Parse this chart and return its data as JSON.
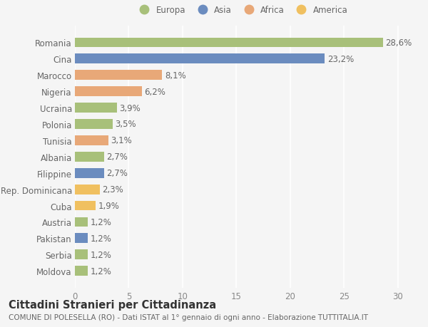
{
  "categories": [
    "Moldova",
    "Serbia",
    "Pakistan",
    "Austria",
    "Cuba",
    "Rep. Dominicana",
    "Filippine",
    "Albania",
    "Tunisia",
    "Polonia",
    "Ucraina",
    "Nigeria",
    "Marocco",
    "Cina",
    "Romania"
  ],
  "values": [
    1.2,
    1.2,
    1.2,
    1.2,
    1.9,
    2.3,
    2.7,
    2.7,
    3.1,
    3.5,
    3.9,
    6.2,
    8.1,
    23.2,
    28.6
  ],
  "colors": [
    "#a8c07a",
    "#a8c07a",
    "#6b8cbf",
    "#a8c07a",
    "#f0c060",
    "#f0c060",
    "#6b8cbf",
    "#a8c07a",
    "#e8a878",
    "#a8c07a",
    "#a8c07a",
    "#e8a878",
    "#e8a878",
    "#6b8cbf",
    "#a8c07a"
  ],
  "legend_labels": [
    "Europa",
    "Asia",
    "Africa",
    "America"
  ],
  "legend_colors": [
    "#a8c07a",
    "#6b8cbf",
    "#e8a878",
    "#f0c060"
  ],
  "title": "Cittadini Stranieri per Cittadinanza",
  "subtitle": "COMUNE DI POLESELLA (RO) - Dati ISTAT al 1° gennaio di ogni anno - Elaborazione TUTTITALIA.IT",
  "xlim": [
    0,
    31
  ],
  "xticks": [
    0,
    5,
    10,
    15,
    20,
    25,
    30
  ],
  "background_color": "#f5f5f5",
  "bar_height": 0.6,
  "label_fontsize": 8.5,
  "tick_fontsize": 8.5,
  "title_fontsize": 10.5,
  "subtitle_fontsize": 7.5
}
